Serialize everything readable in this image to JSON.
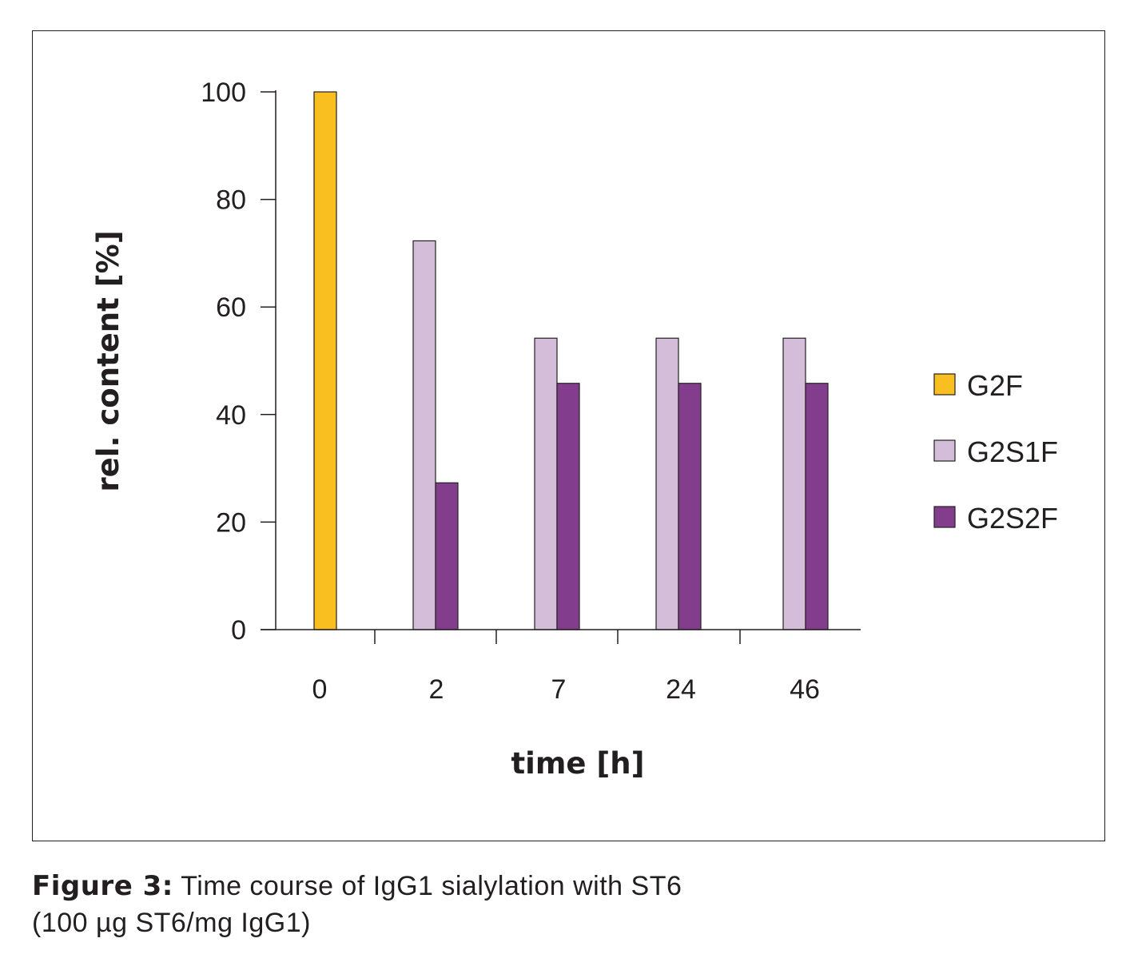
{
  "chart_data": {
    "type": "bar",
    "categories": [
      "0",
      "2",
      "7",
      "24",
      "46"
    ],
    "series": [
      {
        "name": "G2F",
        "color": "#f9bf20",
        "values": [
          100,
          null,
          null,
          null,
          null
        ]
      },
      {
        "name": "G2S1F",
        "color": "#d3bdd9",
        "values": [
          null,
          72.3,
          54.2,
          54.2,
          54.2
        ]
      },
      {
        "name": "G2S2F",
        "color": "#823e8c",
        "values": [
          null,
          27.3,
          45.8,
          45.8,
          45.8
        ]
      }
    ],
    "yticks": [
      "0",
      "20",
      "40",
      "60",
      "80",
      "100"
    ],
    "ylim": [
      0,
      100
    ],
    "xlabel": "time [h]",
    "ylabel": "rel. content [%]",
    "legend_position": "right"
  },
  "caption": {
    "label": "Figure 3:",
    "line1": "Time course of IgG1 sialylation with ST6",
    "line2": "(100 µg ST6/mg IgG1)"
  }
}
